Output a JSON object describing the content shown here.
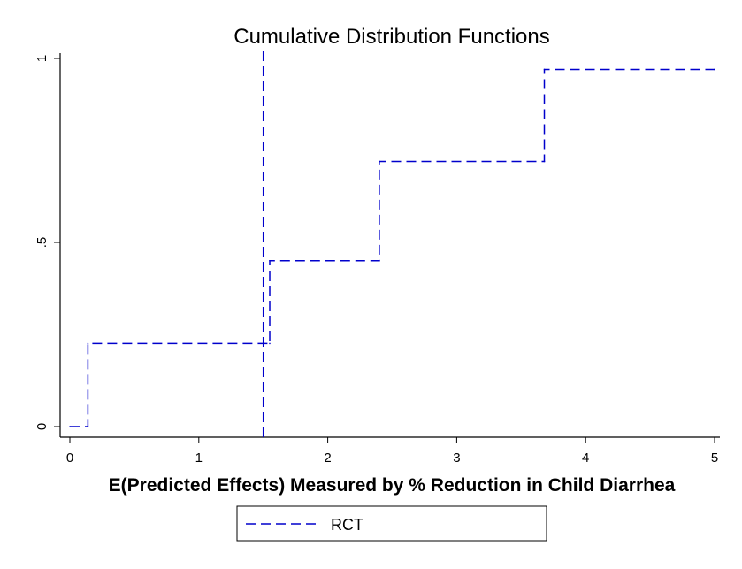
{
  "chart_data": {
    "type": "line",
    "title": "Cumulative Distribution Functions",
    "xlabel": "E(Predicted Effects) Measured by % Reduction in Child Diarrhea",
    "ylabel": "",
    "xlim": [
      0,
      5
    ],
    "ylim": [
      0,
      1
    ],
    "x_ticks": [
      {
        "value": 0,
        "label": "0"
      },
      {
        "value": 1,
        "label": "1"
      },
      {
        "value": 2,
        "label": "2"
      },
      {
        "value": 3,
        "label": "3"
      },
      {
        "value": 4,
        "label": "4"
      },
      {
        "value": 5,
        "label": "5"
      }
    ],
    "y_ticks": [
      {
        "value": 0,
        "label": "0"
      },
      {
        "value": 0.5,
        "label": ".5"
      },
      {
        "value": 1,
        "label": "1"
      }
    ],
    "grid": false,
    "legend_position": "bottom",
    "series": [
      {
        "name": "RCT",
        "style": "dashed step",
        "color": "#0000cc",
        "x": [
          0.0,
          0.14,
          0.14,
          1.55,
          1.55,
          2.4,
          2.4,
          3.68,
          3.68,
          5.0
        ],
        "y": [
          0.0,
          0.0,
          0.225,
          0.225,
          0.45,
          0.45,
          0.72,
          0.72,
          0.97,
          0.97
        ]
      }
    ],
    "vertical_line": {
      "x": 1.5,
      "color": "#0000cc",
      "style": "dashed"
    }
  }
}
